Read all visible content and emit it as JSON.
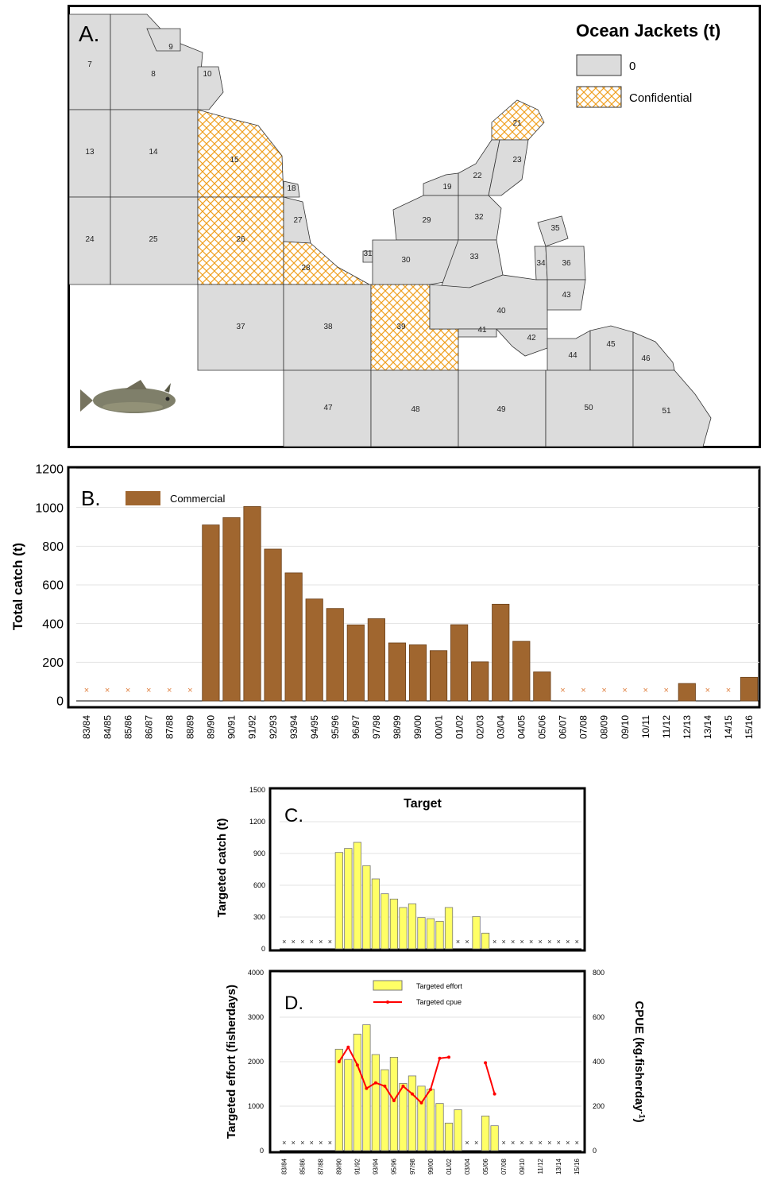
{
  "colors": {
    "grey_zone": "#dcdcdc",
    "confidential": "#f0a020",
    "commercial_bar": "#a0662f",
    "target_bar": "#ffff66",
    "cpue_line": "#ff0000",
    "zero_marker": "#e08040"
  },
  "map": {
    "panel_label": "A.",
    "title": "Ocean Jackets (t)",
    "legend": [
      {
        "label": "0",
        "style": "grey"
      },
      {
        "label": "Confidential",
        "style": "hatch"
      }
    ],
    "zones": [
      "7",
      "8",
      "9",
      "10",
      "13",
      "14",
      "15",
      "18",
      "24",
      "25",
      "26",
      "27",
      "28",
      "31",
      "37",
      "38",
      "39",
      "47",
      "48",
      "19",
      "21",
      "22",
      "23",
      "29",
      "30",
      "32",
      "33",
      "34",
      "35",
      "36",
      "40",
      "41",
      "42",
      "43",
      "44",
      "45",
      "46",
      "49",
      "50",
      "51"
    ],
    "confidential_zones": [
      "15",
      "26",
      "28",
      "39",
      "21"
    ],
    "fish_icon": "fish-icon"
  },
  "chart_data": [
    {
      "type": "bar",
      "panel_label": "B.",
      "title": "",
      "xlabel": "",
      "ylabel": "Total catch (t)",
      "ylim": [
        0,
        1200
      ],
      "yticks": [
        0,
        200,
        400,
        600,
        800,
        1000,
        1200
      ],
      "grid": true,
      "legend_position": "top-left",
      "categories": [
        "83/84",
        "84/85",
        "85/86",
        "86/87",
        "87/88",
        "88/89",
        "89/90",
        "90/91",
        "91/92",
        "92/93",
        "93/94",
        "94/95",
        "95/96",
        "96/97",
        "97/98",
        "98/99",
        "99/00",
        "00/01",
        "01/02",
        "02/03",
        "03/04",
        "04/05",
        "05/06",
        "06/07",
        "07/08",
        "08/09",
        "09/10",
        "10/11",
        "11/12",
        "12/13",
        "13/14",
        "14/15",
        "15/16"
      ],
      "series": [
        {
          "name": "Commercial",
          "values": [
            null,
            null,
            null,
            null,
            null,
            null,
            910,
            948,
            1005,
            785,
            662,
            527,
            478,
            393,
            425,
            300,
            290,
            260,
            394,
            202,
            500,
            308,
            150,
            null,
            null,
            null,
            null,
            null,
            null,
            90,
            null,
            null,
            122
          ]
        }
      ],
      "zero_marker": "×"
    },
    {
      "type": "bar",
      "panel_label": "C.",
      "title": "Target",
      "xlabel": "",
      "ylabel": "Targeted catch (t)",
      "ylim": [
        0,
        1500
      ],
      "yticks": [
        0,
        300,
        600,
        900,
        1200,
        1500
      ],
      "grid": true,
      "categories": [
        "83/84",
        "84/85",
        "85/86",
        "86/87",
        "87/88",
        "88/89",
        "89/90",
        "90/91",
        "91/92",
        "92/93",
        "93/94",
        "94/95",
        "95/96",
        "96/97",
        "97/98",
        "98/99",
        "99/00",
        "00/01",
        "01/02",
        "02/03",
        "03/04",
        "04/05",
        "05/06",
        "06/07",
        "07/08",
        "08/09",
        "09/10",
        "10/11",
        "11/12",
        "12/13",
        "13/14",
        "14/15",
        "15/16"
      ],
      "series": [
        {
          "name": "",
          "values": [
            null,
            null,
            null,
            null,
            null,
            null,
            910,
            948,
            1005,
            785,
            660,
            520,
            470,
            390,
            425,
            295,
            285,
            260,
            390,
            null,
            null,
            305,
            148,
            null,
            null,
            null,
            null,
            null,
            null,
            null,
            null,
            null,
            null
          ]
        }
      ],
      "zero_marker": "×"
    },
    {
      "type": "bar",
      "panel_label": "D.",
      "title": "",
      "xlabel": "",
      "ylabel": "Targeted effort (fisherdays)",
      "ylabel_right": "CPUE (kg.fisherday",
      "ylabel_right_sup": "-1",
      "ylabel_right_close": ")",
      "ylim": [
        0,
        4000
      ],
      "yticks": [
        0,
        1000,
        2000,
        3000,
        4000
      ],
      "ylim_right": [
        0,
        800
      ],
      "yticks_right": [
        0,
        200,
        400,
        600,
        800
      ],
      "grid": true,
      "legend_position": "top-center",
      "categories": [
        "83/84",
        "84/85",
        "85/86",
        "86/87",
        "87/88",
        "88/89",
        "89/90",
        "90/91",
        "91/92",
        "92/93",
        "93/94",
        "94/95",
        "95/96",
        "96/97",
        "97/98",
        "98/99",
        "99/00",
        "00/01",
        "01/02",
        "02/03",
        "03/04",
        "04/05",
        "05/06",
        "06/07",
        "07/08",
        "08/09",
        "09/10",
        "10/11",
        "11/12",
        "12/13",
        "13/14",
        "14/15",
        "15/16"
      ],
      "xtick_labels": [
        "83/84",
        "",
        "85/86",
        "",
        "87/88",
        "",
        "89/90",
        "",
        "91/92",
        "",
        "93/94",
        "",
        "95/96",
        "",
        "97/98",
        "",
        "99/00",
        "",
        "01/02",
        "",
        "03/04",
        "",
        "05/06",
        "",
        "07/08",
        "",
        "09/10",
        "",
        "11/12",
        "",
        "13/14",
        "",
        "15/16"
      ],
      "series": [
        {
          "name": "Targeted effort",
          "type": "bar",
          "axis": "left",
          "values": [
            null,
            null,
            null,
            null,
            null,
            null,
            2280,
            2050,
            2620,
            2830,
            2160,
            1820,
            2100,
            1510,
            1680,
            1450,
            1380,
            1060,
            620,
            920,
            null,
            null,
            780,
            560,
            null,
            null,
            null,
            null,
            null,
            null,
            null,
            null,
            null
          ]
        },
        {
          "name": "Targeted cpue",
          "type": "line",
          "axis": "right",
          "values": [
            null,
            null,
            null,
            null,
            null,
            null,
            400,
            465,
            385,
            280,
            305,
            290,
            225,
            290,
            255,
            215,
            275,
            415,
            420,
            null,
            null,
            null,
            395,
            255,
            null,
            null,
            null,
            null,
            null,
            null,
            null,
            null,
            null
          ]
        }
      ],
      "zero_marker": "×"
    }
  ]
}
